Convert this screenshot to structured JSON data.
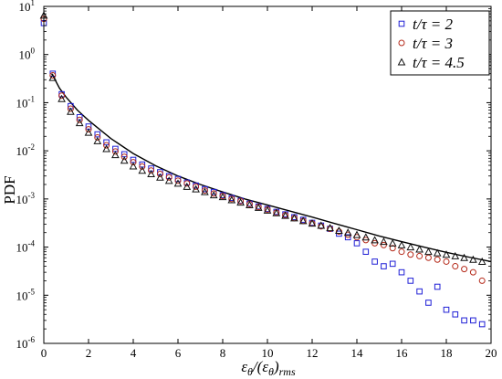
{
  "chart_data": {
    "type": "scatter",
    "xlabel": "ε_θ/(ε_θ)_rms",
    "ylabel": "PDF",
    "xlim": [
      0,
      20
    ],
    "ylim": [
      1e-06,
      10
    ],
    "yscale": "log",
    "grid": false,
    "legend_position": "top-right",
    "x_ticks": [
      0,
      2,
      4,
      6,
      8,
      10,
      12,
      14,
      16,
      18,
      20
    ],
    "y_ticks": [
      {
        "base": "10",
        "exp": "-6",
        "value": 1e-06
      },
      {
        "base": "10",
        "exp": "-5",
        "value": 1e-05
      },
      {
        "base": "10",
        "exp": "-4",
        "value": 0.0001
      },
      {
        "base": "10",
        "exp": "-3",
        "value": 0.001
      },
      {
        "base": "10",
        "exp": "-2",
        "value": 0.01
      },
      {
        "base": "10",
        "exp": "-1",
        "value": 0.1
      },
      {
        "base": "10",
        "exp": "0",
        "value": 1
      },
      {
        "base": "10",
        "exp": "1",
        "value": 10
      }
    ],
    "series": [
      {
        "name": "t/τ = 2",
        "marker": "square",
        "color": "#1f1fd6",
        "x": [
          0,
          0.4,
          0.8,
          1.2,
          1.6,
          2.0,
          2.4,
          2.8,
          3.2,
          3.6,
          4.0,
          4.4,
          4.8,
          5.2,
          5.6,
          6.0,
          6.4,
          6.8,
          7.2,
          7.6,
          8.0,
          8.4,
          8.8,
          9.2,
          9.6,
          10.0,
          10.4,
          10.8,
          11.2,
          11.6,
          12.0,
          12.4,
          12.8,
          13.2,
          13.6,
          14.0,
          14.4,
          14.8,
          15.2,
          15.6,
          16.0,
          16.4,
          16.8,
          17.2,
          17.6,
          18.0,
          18.4,
          18.8,
          19.2,
          19.6
        ],
        "y": [
          4.5,
          0.4,
          0.15,
          0.085,
          0.05,
          0.032,
          0.022,
          0.015,
          0.011,
          0.0085,
          0.0065,
          0.0052,
          0.0043,
          0.0036,
          0.003,
          0.0026,
          0.0022,
          0.0019,
          0.0016,
          0.0014,
          0.0012,
          0.00105,
          0.00092,
          0.0008,
          0.0007,
          0.00062,
          0.00054,
          0.00048,
          0.00042,
          0.00037,
          0.00032,
          0.00028,
          0.00024,
          0.00019,
          0.00016,
          0.00012,
          8e-05,
          5e-05,
          4e-05,
          4.5e-05,
          3e-05,
          2e-05,
          1.2e-05,
          7e-06,
          1.5e-05,
          5e-06,
          4e-06,
          3e-06,
          3e-06,
          2.5e-06
        ]
      },
      {
        "name": "t/τ = 3",
        "marker": "circle",
        "color": "#b52a1a",
        "x": [
          0,
          0.4,
          0.8,
          1.2,
          1.6,
          2.0,
          2.4,
          2.8,
          3.2,
          3.6,
          4.0,
          4.4,
          4.8,
          5.2,
          5.6,
          6.0,
          6.4,
          6.8,
          7.2,
          7.6,
          8.0,
          8.4,
          8.8,
          9.2,
          9.6,
          10.0,
          10.4,
          10.8,
          11.2,
          11.6,
          12.0,
          12.4,
          12.8,
          13.2,
          13.6,
          14.0,
          14.4,
          14.8,
          15.2,
          15.6,
          16.0,
          16.4,
          16.8,
          17.2,
          17.6,
          18.0,
          18.4,
          18.8,
          19.2,
          19.6
        ],
        "y": [
          5.5,
          0.37,
          0.14,
          0.075,
          0.044,
          0.028,
          0.019,
          0.013,
          0.0097,
          0.0075,
          0.0058,
          0.0047,
          0.0039,
          0.0033,
          0.0028,
          0.0024,
          0.0021,
          0.0018,
          0.0015,
          0.0013,
          0.00115,
          0.001,
          0.0009,
          0.00078,
          0.00068,
          0.0006,
          0.00052,
          0.00046,
          0.0004,
          0.00035,
          0.00031,
          0.00027,
          0.00024,
          0.00021,
          0.00018,
          0.00016,
          0.00014,
          0.00012,
          0.00011,
          9.5e-05,
          8e-05,
          7e-05,
          6.5e-05,
          6e-05,
          5.5e-05,
          5e-05,
          4e-05,
          3.5e-05,
          3e-05,
          2e-05
        ]
      },
      {
        "name": "t/τ = 4.5",
        "marker": "triangle",
        "color": "#111111",
        "x": [
          0,
          0.4,
          0.8,
          1.2,
          1.6,
          2.0,
          2.4,
          2.8,
          3.2,
          3.6,
          4.0,
          4.4,
          4.8,
          5.2,
          5.6,
          6.0,
          6.4,
          6.8,
          7.2,
          7.6,
          8.0,
          8.4,
          8.8,
          9.2,
          9.6,
          10.0,
          10.4,
          10.8,
          11.2,
          11.6,
          12.0,
          12.4,
          12.8,
          13.2,
          13.6,
          14.0,
          14.4,
          14.8,
          15.2,
          15.6,
          16.0,
          16.4,
          16.8,
          17.2,
          17.6,
          18.0,
          18.4,
          18.8,
          19.2,
          19.6
        ],
        "y": [
          6.5,
          0.33,
          0.12,
          0.065,
          0.038,
          0.024,
          0.016,
          0.011,
          0.0082,
          0.0063,
          0.0048,
          0.0039,
          0.0033,
          0.0028,
          0.0024,
          0.0021,
          0.0018,
          0.0016,
          0.0014,
          0.0012,
          0.0011,
          0.00095,
          0.00085,
          0.00075,
          0.00066,
          0.00058,
          0.00051,
          0.00045,
          0.0004,
          0.00035,
          0.00031,
          0.00028,
          0.00025,
          0.00022,
          0.0002,
          0.00018,
          0.00016,
          0.00014,
          0.00013,
          0.00012,
          0.00011,
          0.0001,
          9e-05,
          8e-05,
          7.5e-05,
          7e-05,
          6.5e-05,
          6e-05,
          5.5e-05,
          5e-05
        ]
      }
    ],
    "fit_curve": {
      "color": "#000000",
      "x": [
        0.35,
        0.5,
        0.7,
        1.0,
        1.5,
        2.0,
        3.0,
        4.0,
        5.0,
        6.0,
        7.0,
        8.0,
        9.0,
        10.0,
        11.0,
        12.0,
        13.0,
        14.0,
        15.0,
        16.0,
        17.0,
        18.0,
        19.0,
        20.0
      ],
      "y": [
        0.4,
        0.3,
        0.2,
        0.13,
        0.07,
        0.043,
        0.018,
        0.0088,
        0.0049,
        0.003,
        0.002,
        0.0014,
        0.001,
        0.00075,
        0.00056,
        0.00042,
        0.00031,
        0.00023,
        0.00017,
        0.00013,
        0.0001,
        7.8e-05,
        6.2e-05,
        5e-05
      ]
    }
  }
}
